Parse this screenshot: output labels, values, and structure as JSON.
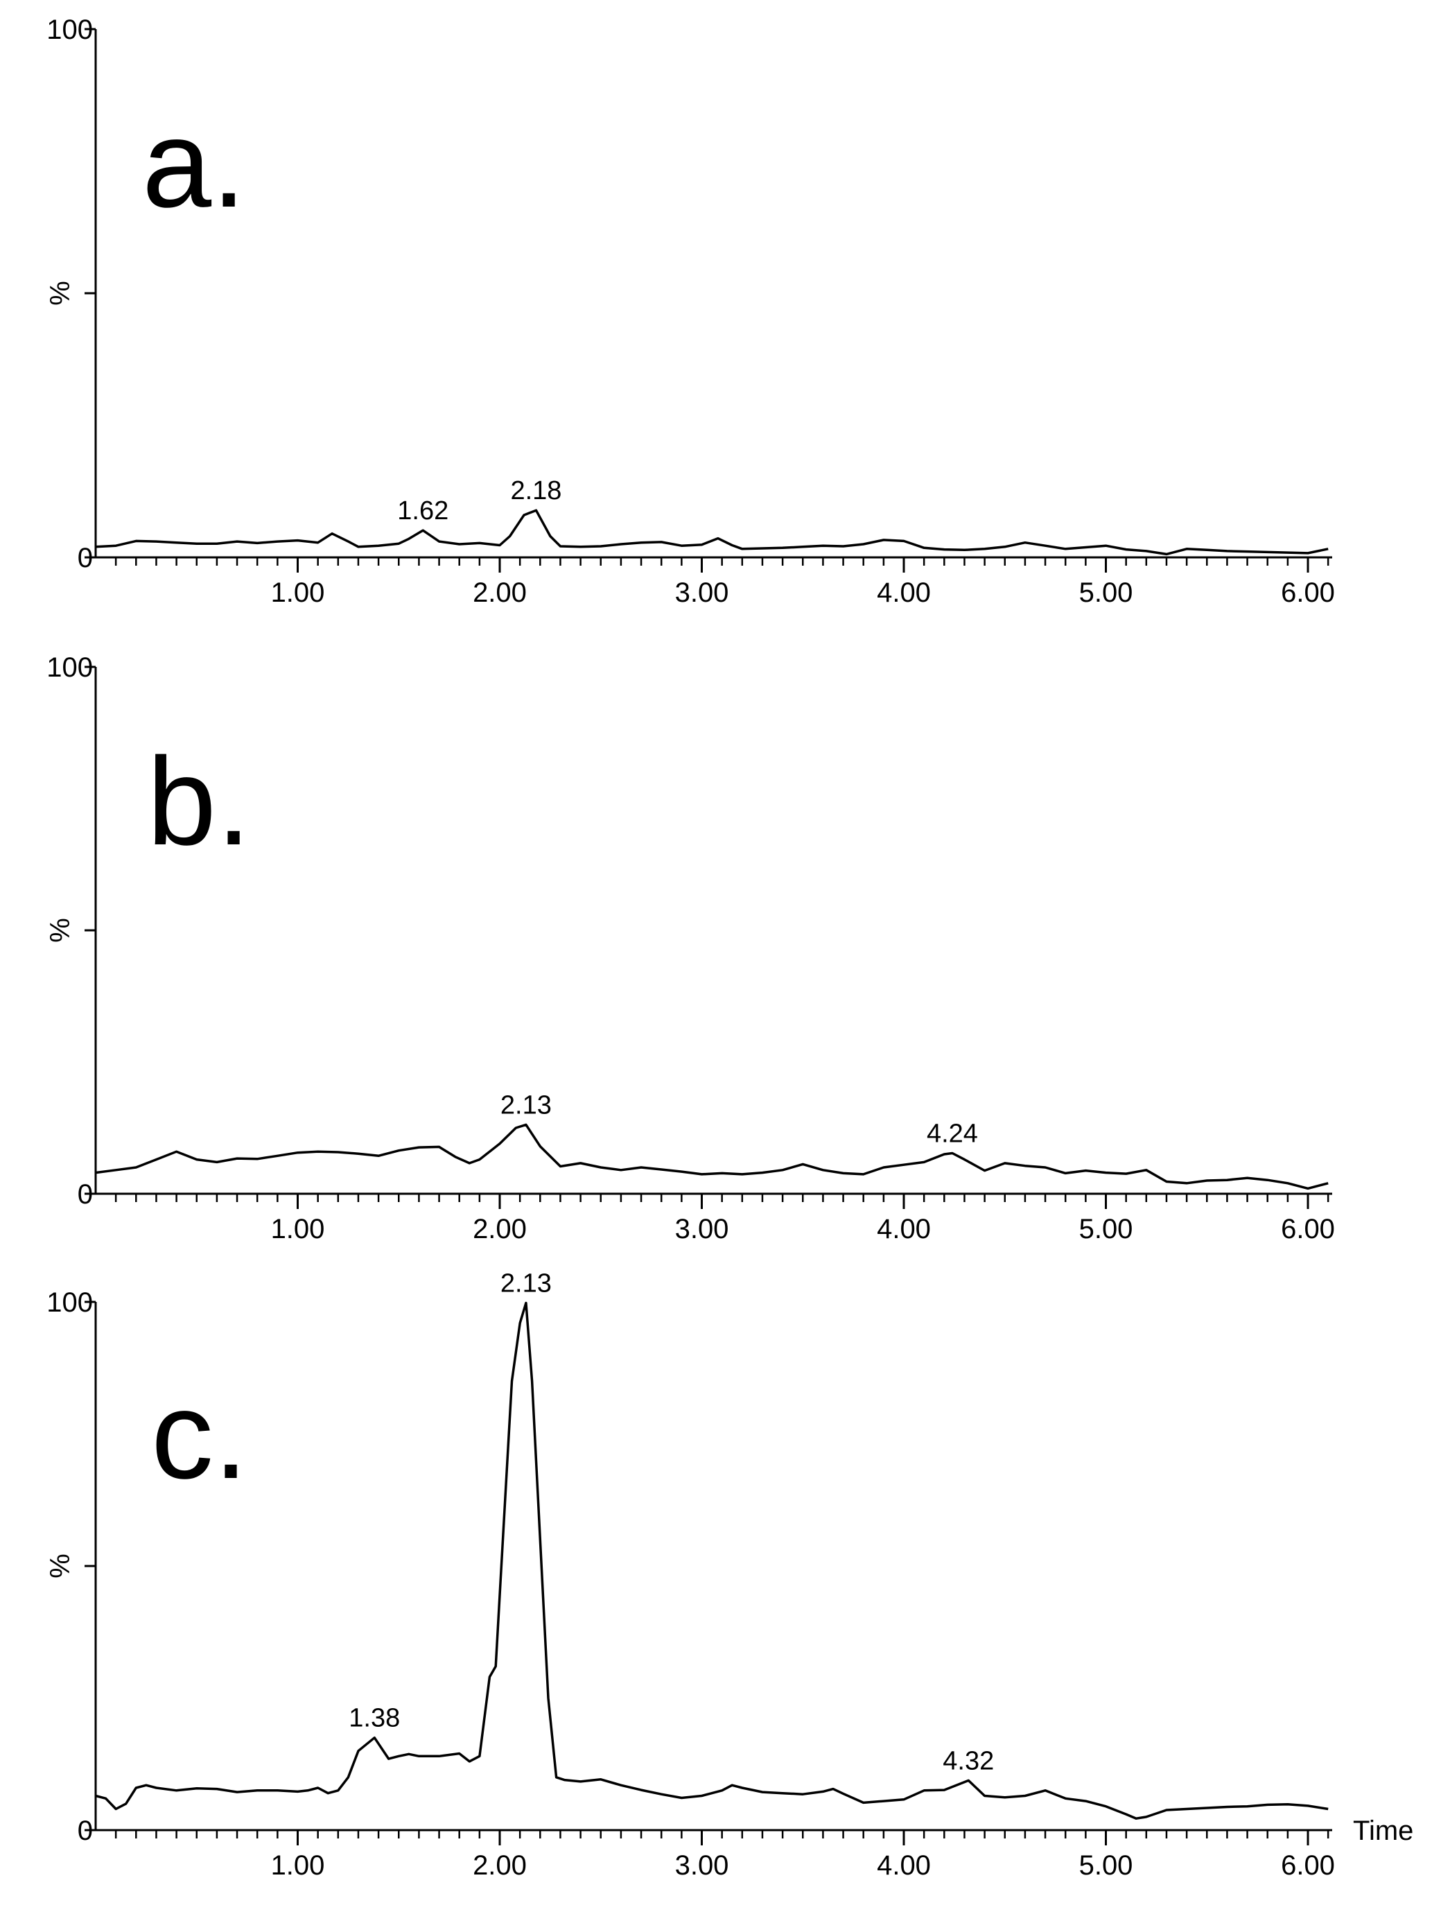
{
  "chart_data": [
    {
      "type": "line",
      "panel_label": "a.",
      "ylabel": "%",
      "xlabel": "",
      "xlim": [
        0.0,
        6.12
      ],
      "ylim": [
        0,
        100
      ],
      "x_ticks": [
        {
          "value": 1.0,
          "label": "1.00"
        },
        {
          "value": 2.0,
          "label": "2.00"
        },
        {
          "value": 3.0,
          "label": "3.00"
        },
        {
          "value": 4.0,
          "label": "4.00"
        },
        {
          "value": 5.0,
          "label": "5.00"
        },
        {
          "value": 6.0,
          "label": "6.00"
        }
      ],
      "y_ticks": [
        {
          "value": 0,
          "label": "0"
        },
        {
          "value": 100,
          "label": "100"
        }
      ],
      "series": [
        {
          "x": [
            0.0,
            0.1,
            0.2,
            0.3,
            0.4,
            0.5,
            0.6,
            0.7,
            0.8,
            0.9,
            1.0,
            1.1,
            1.17,
            1.25,
            1.3,
            1.4,
            1.5,
            1.55,
            1.62,
            1.7,
            1.8,
            1.9,
            2.0,
            2.05,
            2.12,
            2.18,
            2.25,
            2.3,
            2.4,
            2.5,
            2.6,
            2.7,
            2.8,
            2.9,
            3.0,
            3.08,
            3.15,
            3.2,
            3.3,
            3.4,
            3.5,
            3.6,
            3.7,
            3.8,
            3.9,
            4.0,
            4.1,
            4.2,
            4.3,
            4.4,
            4.5,
            4.6,
            4.7,
            4.8,
            4.9,
            5.0,
            5.1,
            5.2,
            5.3,
            5.4,
            5.5,
            5.6,
            5.7,
            5.8,
            5.9,
            6.0,
            6.1
          ],
          "y": [
            2.0,
            2.2,
            3.1,
            3.0,
            2.8,
            2.6,
            2.6,
            3.0,
            2.7,
            3.0,
            3.2,
            2.8,
            4.5,
            3.0,
            2.0,
            2.2,
            2.6,
            3.5,
            5.1,
            3.0,
            2.5,
            2.7,
            2.3,
            4.0,
            8.0,
            8.9,
            4.0,
            2.1,
            2.0,
            2.1,
            2.5,
            2.8,
            2.9,
            2.2,
            2.4,
            3.6,
            2.3,
            1.6,
            1.7,
            1.8,
            2.0,
            2.2,
            2.1,
            2.5,
            3.3,
            3.1,
            1.8,
            1.5,
            1.4,
            1.6,
            2.0,
            2.8,
            2.2,
            1.6,
            1.9,
            2.2,
            1.5,
            1.2,
            0.6,
            1.6,
            1.4,
            1.2,
            1.1,
            1.0,
            0.9,
            0.8,
            1.6
          ]
        }
      ],
      "annotations": [
        {
          "x": 1.62,
          "y": 5.1,
          "text": "1.62"
        },
        {
          "x": 2.18,
          "y": 8.9,
          "text": "2.18"
        }
      ]
    },
    {
      "type": "line",
      "panel_label": "b.",
      "ylabel": "%",
      "xlabel": "",
      "xlim": [
        0.0,
        6.12
      ],
      "ylim": [
        0,
        100
      ],
      "x_ticks": [
        {
          "value": 1.0,
          "label": "1.00"
        },
        {
          "value": 2.0,
          "label": "2.00"
        },
        {
          "value": 3.0,
          "label": "3.00"
        },
        {
          "value": 4.0,
          "label": "4.00"
        },
        {
          "value": 5.0,
          "label": "5.00"
        },
        {
          "value": 6.0,
          "label": "6.00"
        }
      ],
      "y_ticks": [
        {
          "value": 0,
          "label": "0"
        },
        {
          "value": 100,
          "label": "100"
        }
      ],
      "series": [
        {
          "x": [
            0.0,
            0.1,
            0.2,
            0.3,
            0.4,
            0.5,
            0.6,
            0.7,
            0.8,
            0.9,
            1.0,
            1.1,
            1.2,
            1.3,
            1.4,
            1.5,
            1.6,
            1.7,
            1.78,
            1.85,
            1.9,
            2.0,
            2.08,
            2.13,
            2.2,
            2.3,
            2.4,
            2.5,
            2.6,
            2.7,
            2.8,
            2.9,
            3.0,
            3.1,
            3.2,
            3.3,
            3.4,
            3.5,
            3.6,
            3.7,
            3.8,
            3.9,
            4.0,
            4.1,
            4.2,
            4.24,
            4.3,
            4.4,
            4.5,
            4.6,
            4.7,
            4.8,
            4.9,
            5.0,
            5.1,
            5.2,
            5.3,
            5.4,
            5.5,
            5.6,
            5.7,
            5.8,
            5.9,
            6.0,
            6.1
          ],
          "y": [
            4.0,
            4.5,
            5.0,
            6.5,
            8.0,
            6.5,
            6.0,
            6.7,
            6.6,
            7.2,
            7.8,
            8.0,
            7.9,
            7.6,
            7.2,
            8.2,
            8.8,
            8.9,
            7.0,
            5.8,
            6.5,
            9.5,
            12.5,
            13.1,
            9.0,
            5.2,
            5.8,
            5.0,
            4.5,
            5.0,
            4.6,
            4.2,
            3.7,
            3.9,
            3.7,
            4.0,
            4.5,
            5.6,
            4.5,
            3.9,
            3.7,
            5.0,
            5.5,
            6.0,
            7.5,
            7.7,
            6.5,
            4.4,
            5.8,
            5.3,
            5.0,
            3.9,
            4.4,
            4.0,
            3.8,
            4.5,
            2.3,
            2.0,
            2.5,
            2.6,
            3.0,
            2.6,
            2.0,
            1.0,
            2.0
          ]
        }
      ],
      "annotations": [
        {
          "x": 2.13,
          "y": 13.1,
          "text": "2.13"
        },
        {
          "x": 4.24,
          "y": 7.7,
          "text": "4.24"
        }
      ]
    },
    {
      "type": "line",
      "panel_label": "c.",
      "ylabel": "%",
      "xlabel": "Time",
      "xlim": [
        0.0,
        6.12
      ],
      "ylim": [
        0,
        100
      ],
      "x_ticks": [
        {
          "value": 1.0,
          "label": "1.00"
        },
        {
          "value": 2.0,
          "label": "2.00"
        },
        {
          "value": 3.0,
          "label": "3.00"
        },
        {
          "value": 4.0,
          "label": "4.00"
        },
        {
          "value": 5.0,
          "label": "5.00"
        },
        {
          "value": 6.0,
          "label": "6.00"
        }
      ],
      "y_ticks": [
        {
          "value": 0,
          "label": "0"
        },
        {
          "value": 100,
          "label": "100"
        }
      ],
      "series": [
        {
          "x": [
            0.0,
            0.05,
            0.1,
            0.15,
            0.2,
            0.25,
            0.3,
            0.4,
            0.5,
            0.6,
            0.7,
            0.8,
            0.9,
            1.0,
            1.05,
            1.1,
            1.15,
            1.2,
            1.25,
            1.3,
            1.38,
            1.45,
            1.5,
            1.55,
            1.6,
            1.7,
            1.8,
            1.85,
            1.9,
            1.95,
            1.98,
            2.02,
            2.06,
            2.1,
            2.13,
            2.16,
            2.2,
            2.24,
            2.28,
            2.32,
            2.4,
            2.5,
            2.6,
            2.7,
            2.8,
            2.9,
            3.0,
            3.1,
            3.15,
            3.2,
            3.3,
            3.4,
            3.5,
            3.6,
            3.65,
            3.7,
            3.8,
            3.9,
            4.0,
            4.1,
            4.2,
            4.32,
            4.4,
            4.5,
            4.6,
            4.7,
            4.8,
            4.9,
            5.0,
            5.1,
            5.15,
            5.2,
            5.3,
            5.4,
            5.5,
            5.6,
            5.7,
            5.8,
            5.9,
            6.0,
            6.1
          ],
          "y": [
            6.5,
            6.0,
            4.0,
            5.0,
            8.0,
            8.5,
            8.0,
            7.5,
            7.9,
            7.8,
            7.2,
            7.5,
            7.5,
            7.3,
            7.5,
            8.0,
            7.0,
            7.5,
            10.0,
            15.0,
            17.5,
            13.5,
            14.0,
            14.4,
            14.0,
            14.0,
            14.5,
            13.0,
            14.0,
            29.0,
            31.0,
            58.0,
            85.0,
            96.0,
            99.8,
            85.0,
            55.0,
            25.0,
            10.0,
            9.5,
            9.2,
            9.6,
            8.5,
            7.6,
            6.8,
            6.1,
            6.5,
            7.5,
            8.5,
            8.0,
            7.2,
            7.0,
            6.8,
            7.3,
            7.8,
            6.9,
            5.2,
            5.5,
            5.8,
            7.5,
            7.6,
            9.4,
            6.5,
            6.2,
            6.5,
            7.5,
            6.0,
            5.5,
            4.5,
            3.0,
            2.2,
            2.5,
            3.8,
            4.0,
            4.2,
            4.4,
            4.5,
            4.8,
            4.9,
            4.6,
            4.0
          ]
        }
      ],
      "annotations": [
        {
          "x": 1.38,
          "y": 17.5,
          "text": "1.38"
        },
        {
          "x": 2.13,
          "y": 99.8,
          "text": "2.13"
        },
        {
          "x": 4.32,
          "y": 9.4,
          "text": "4.32"
        }
      ]
    }
  ]
}
